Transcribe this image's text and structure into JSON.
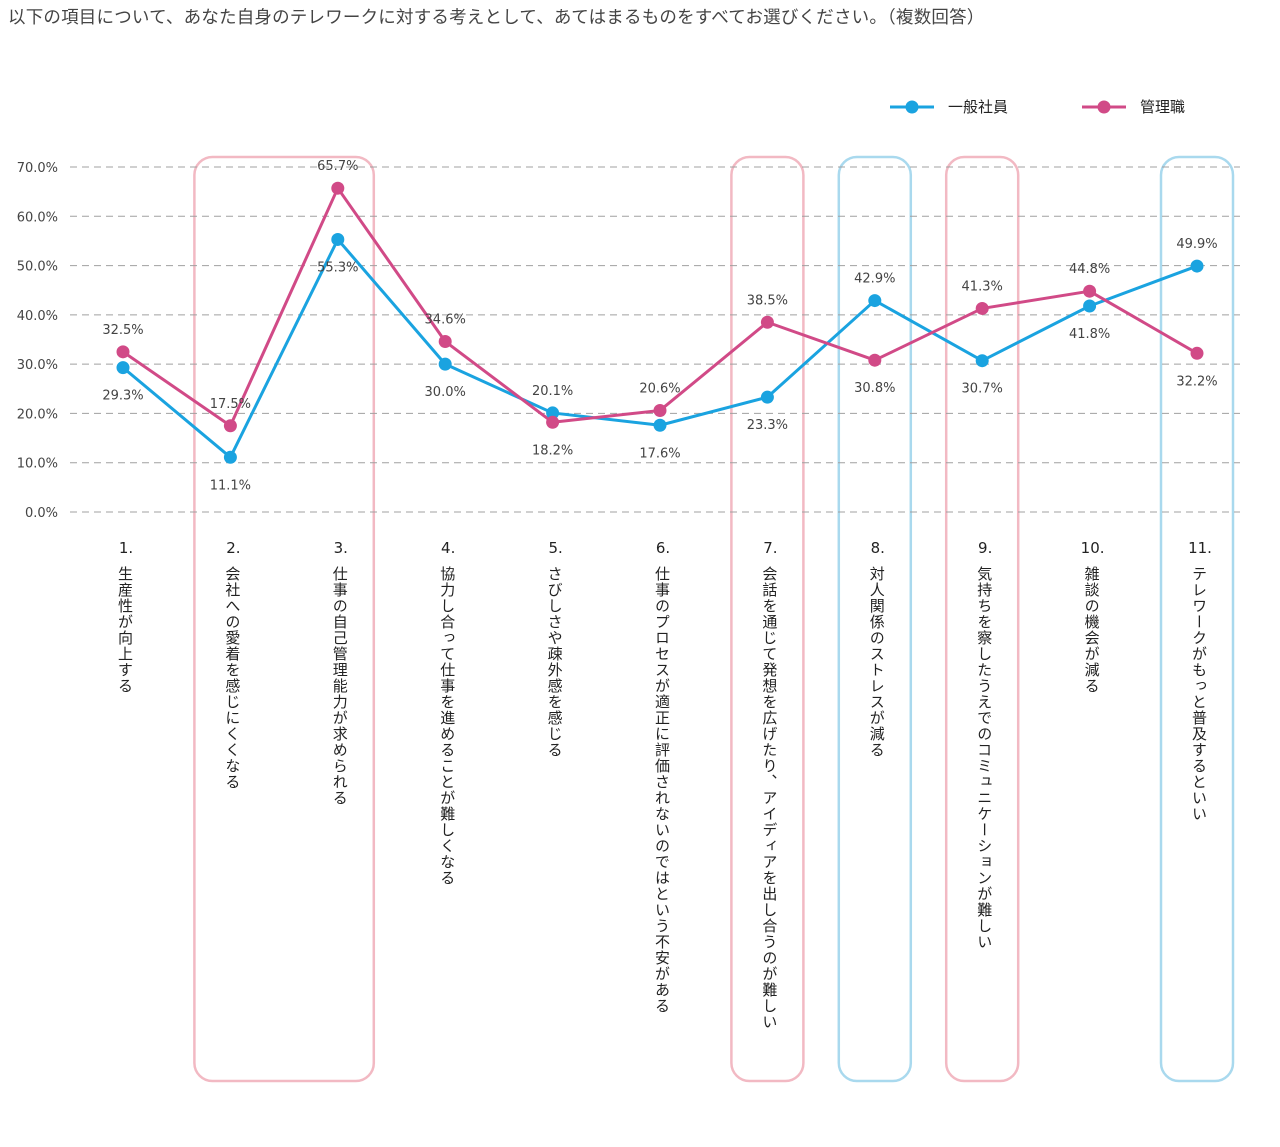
{
  "title": "以下の項目について、あなた自身のテレワークに対する考えとして、あてはまるものをすべてお選びください。（複数回答）",
  "colors": {
    "general": "#1aa3e0",
    "manager": "#d14a87",
    "pink_box": "#f2b9c3",
    "blue_box": "#a9d9ee",
    "grid": "#a0a0a0"
  },
  "chart_data": {
    "type": "line",
    "title": "",
    "xlabel": "",
    "ylabel": "",
    "ylim": [
      0,
      70
    ],
    "yticks": [
      "0.0%",
      "10.0%",
      "20.0%",
      "30.0%",
      "40.0%",
      "50.0%",
      "60.0%",
      "70.0%"
    ],
    "grid": true,
    "legend_position": "top-right",
    "categories": [
      "1.生産性が向上する",
      "2.会社への愛着を感じにくくなる",
      "3.仕事の自己管理能力が求められる",
      "4.協力し合って仕事を進めることが難しくなる",
      "5.さびしさや疎外感を感じる",
      "6.仕事のプロセスが適正に評価されないのではという不安がある",
      "7.会話を通じて発想を広げたり、アイディアを出し合うのが難しい",
      "8.対人関係のストレスが減る",
      "9.気持ちを察したうえでのコミュニケーションが難しい",
      "10.雑談の機会が減る",
      "11.テレワークがもっと普及するといい"
    ],
    "category_lines": [
      [
        "1.",
        "生産性が向上する"
      ],
      [
        "2.",
        "会社への愛着を感じにくくなる"
      ],
      [
        "3.",
        "仕事の自己管理能力が求められる"
      ],
      [
        "4.",
        "協力し合って仕事を進めることが難しくなる"
      ],
      [
        "5.",
        "さびしさや疎外感を感じる"
      ],
      [
        "6.",
        "仕事のプロセスが適正に評価されないのではという不安がある"
      ],
      [
        "7.",
        "会話を通じて発想を広げたり、アイディアを出し合うのが難しい"
      ],
      [
        "8.",
        "対人関係のストレスが減る"
      ],
      [
        "9.",
        "気持ちを察したうえでのコミュニケーションが難しい"
      ],
      [
        "10.",
        "雑談の機会が減る"
      ],
      [
        "11.",
        "テレワークがもっと普及するといい"
      ]
    ],
    "series": [
      {
        "name": "一般社員",
        "values": [
          29.3,
          11.1,
          55.3,
          30.0,
          20.1,
          17.6,
          23.3,
          42.9,
          30.7,
          41.8,
          49.9
        ],
        "labels": [
          "29.3%",
          "11.1%",
          "55.3%",
          "30.0%",
          "20.1%",
          "17.6%",
          "23.3%",
          "42.9%",
          "30.7%",
          "41.8%",
          "49.9%"
        ]
      },
      {
        "name": "管理職",
        "values": [
          32.5,
          17.5,
          65.7,
          34.6,
          18.2,
          20.6,
          38.5,
          30.8,
          41.3,
          44.8,
          32.2
        ],
        "labels": [
          "32.5%",
          "17.5%",
          "65.7%",
          "34.6%",
          "18.2%",
          "20.6%",
          "38.5%",
          "30.8%",
          "41.3%",
          "44.8%",
          "32.2%"
        ]
      }
    ],
    "highlights": [
      {
        "categories": [
          1,
          2
        ],
        "color": "pink"
      },
      {
        "categories": [
          6
        ],
        "color": "pink"
      },
      {
        "categories": [
          7
        ],
        "color": "blue"
      },
      {
        "categories": [
          8
        ],
        "color": "pink"
      },
      {
        "categories": [
          10
        ],
        "color": "blue"
      }
    ]
  }
}
